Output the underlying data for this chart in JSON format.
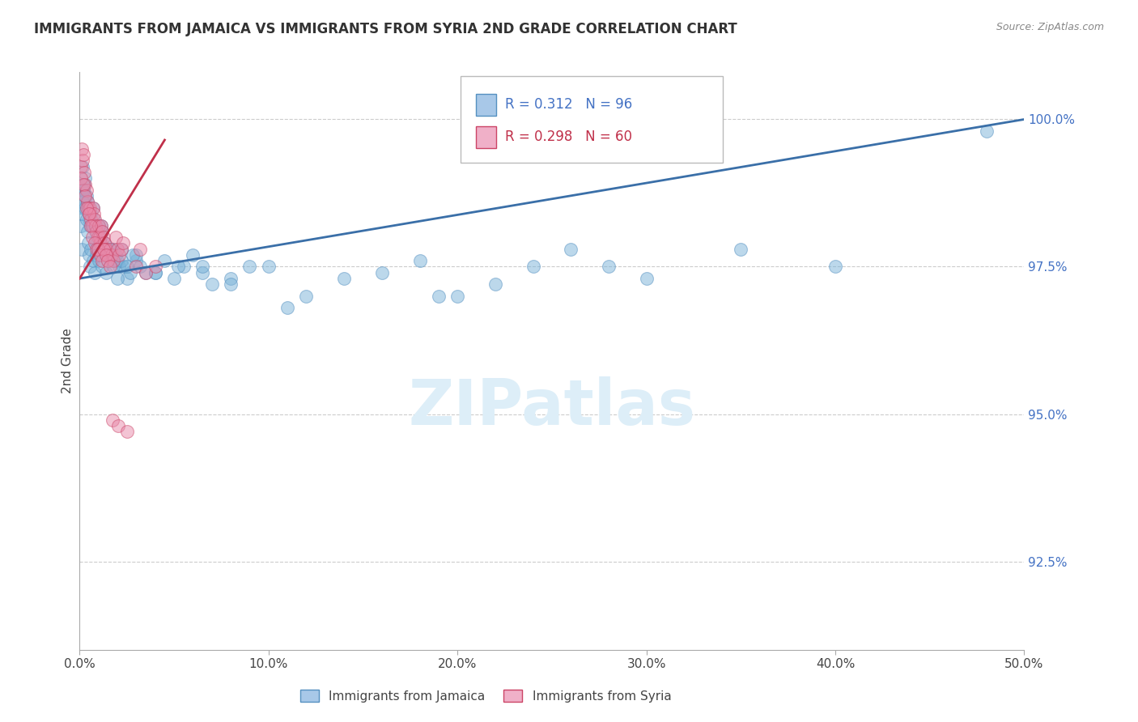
{
  "title": "IMMIGRANTS FROM JAMAICA VS IMMIGRANTS FROM SYRIA 2ND GRADE CORRELATION CHART",
  "source": "Source: ZipAtlas.com",
  "ylabel": "2nd Grade",
  "y_ticks": [
    92.5,
    95.0,
    97.5,
    100.0
  ],
  "x_lim": [
    0.0,
    50.0
  ],
  "y_lim": [
    91.0,
    100.8
  ],
  "jamaica_R": 0.312,
  "jamaica_N": 96,
  "syria_R": 0.298,
  "syria_N": 60,
  "jamaica_face": "#7ab3d9",
  "jamaica_edge": "#5590c0",
  "syria_face": "#e88aaa",
  "syria_edge": "#cc4466",
  "jamaica_line_color": "#3a6fa8",
  "syria_line_color": "#c0304a",
  "watermark": "ZIPatlas",
  "watermark_color": "#ddeef8",
  "legend_box_face": "#ffffff",
  "legend_box_edge": "#bbbbbb",
  "jamaica_R_color": "#4472c4",
  "syria_R_color": "#c0304a",
  "right_tick_color": "#4472c4",
  "jamaica_legend_face": "#a8c8e8",
  "jamaica_legend_edge": "#5590c0",
  "syria_legend_face": "#f0b0c8",
  "syria_legend_edge": "#cc4466",
  "jamaica_x": [
    0.1,
    0.15,
    0.15,
    0.2,
    0.25,
    0.3,
    0.35,
    0.4,
    0.45,
    0.5,
    0.55,
    0.6,
    0.65,
    0.7,
    0.75,
    0.8,
    0.85,
    0.9,
    0.95,
    1.0,
    1.05,
    1.1,
    1.15,
    1.2,
    1.25,
    1.3,
    1.35,
    1.4,
    1.5,
    1.6,
    1.7,
    1.8,
    1.9,
    2.0,
    2.1,
    2.2,
    2.3,
    2.5,
    2.7,
    3.0,
    3.2,
    3.5,
    4.0,
    4.5,
    5.0,
    5.5,
    6.0,
    6.5,
    7.0,
    8.0,
    9.0,
    10.0,
    11.0,
    12.0,
    14.0,
    16.0,
    18.0,
    20.0,
    22.0,
    24.0,
    26.0,
    28.0,
    30.0,
    35.0,
    40.0,
    48.0,
    0.05,
    0.1,
    0.15,
    0.2,
    0.25,
    0.3,
    0.35,
    0.4,
    0.45,
    0.5,
    0.55,
    0.6,
    0.7,
    0.8,
    0.9,
    1.0,
    1.2,
    1.4,
    1.6,
    1.8,
    2.0,
    2.2,
    2.5,
    3.0,
    4.0,
    8.0,
    19.0,
    5.2,
    6.5,
    2.8
  ],
  "jamaica_y": [
    97.8,
    98.5,
    99.2,
    98.8,
    98.9,
    99.0,
    98.7,
    98.6,
    98.5,
    98.3,
    98.2,
    98.4,
    98.2,
    98.5,
    98.3,
    98.2,
    98.1,
    97.9,
    97.8,
    98.2,
    97.9,
    98.0,
    98.2,
    98.1,
    97.8,
    97.9,
    97.8,
    97.7,
    97.8,
    97.7,
    97.6,
    97.8,
    97.7,
    97.6,
    97.5,
    97.8,
    97.5,
    97.3,
    97.4,
    97.6,
    97.5,
    97.4,
    97.4,
    97.6,
    97.3,
    97.5,
    97.7,
    97.4,
    97.2,
    97.3,
    97.5,
    97.5,
    96.8,
    97.0,
    97.3,
    97.4,
    97.6,
    97.0,
    97.2,
    97.5,
    97.8,
    97.5,
    97.3,
    97.8,
    97.5,
    99.8,
    98.2,
    98.4,
    98.6,
    98.8,
    98.7,
    98.5,
    98.3,
    98.1,
    97.9,
    97.7,
    97.5,
    97.8,
    97.6,
    97.4,
    97.7,
    97.6,
    97.5,
    97.4,
    97.8,
    97.5,
    97.3,
    97.6,
    97.5,
    97.7,
    97.4,
    97.2,
    97.0,
    97.5,
    97.5,
    97.7
  ],
  "syria_x": [
    0.05,
    0.1,
    0.15,
    0.2,
    0.25,
    0.3,
    0.35,
    0.4,
    0.45,
    0.5,
    0.55,
    0.6,
    0.65,
    0.7,
    0.75,
    0.8,
    0.85,
    0.9,
    0.95,
    1.0,
    1.05,
    1.1,
    1.15,
    1.2,
    1.25,
    1.3,
    1.35,
    1.4,
    1.5,
    1.6,
    1.7,
    1.8,
    1.9,
    2.0,
    2.1,
    2.2,
    2.3,
    3.0,
    3.5,
    4.0,
    0.08,
    0.18,
    0.28,
    0.38,
    0.48,
    0.58,
    0.68,
    0.78,
    0.88,
    0.98,
    1.08,
    1.18,
    1.28,
    1.38,
    1.48,
    1.6,
    1.75,
    2.05,
    2.5,
    3.2
  ],
  "syria_y": [
    99.2,
    99.5,
    99.3,
    99.4,
    99.1,
    98.9,
    98.8,
    98.6,
    98.5,
    98.4,
    98.5,
    98.3,
    98.2,
    98.5,
    98.4,
    98.3,
    98.2,
    98.1,
    98.0,
    98.2,
    98.0,
    97.9,
    98.2,
    98.1,
    98.0,
    97.9,
    97.8,
    97.8,
    97.7,
    97.8,
    97.7,
    97.6,
    98.0,
    97.8,
    97.7,
    97.8,
    97.9,
    97.5,
    97.4,
    97.5,
    99.0,
    98.9,
    98.7,
    98.5,
    98.4,
    98.2,
    98.0,
    97.9,
    97.8,
    97.8,
    97.7,
    97.6,
    97.8,
    97.7,
    97.6,
    97.5,
    94.9,
    94.8,
    94.7,
    97.8
  ],
  "jamaica_line_x": [
    0,
    50
  ],
  "jamaica_line_y": [
    97.3,
    100.0
  ],
  "syria_line_x": [
    0,
    4.5
  ],
  "syria_line_y": [
    97.3,
    99.65
  ]
}
